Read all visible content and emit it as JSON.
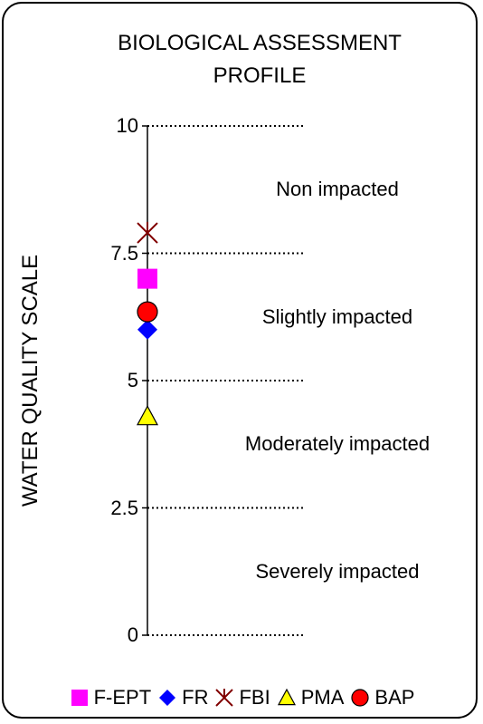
{
  "chart_data": {
    "type": "scatter",
    "title_lines": [
      "BIOLOGICAL ASSESSMENT",
      "PROFILE"
    ],
    "ylabel": "WATER QUALITY SCALE",
    "ylim": [
      0,
      10
    ],
    "yticks": [
      {
        "value": 0,
        "label": "0"
      },
      {
        "value": 2.5,
        "label": "2.5"
      },
      {
        "value": 5,
        "label": "5"
      },
      {
        "value": 7.5,
        "label": "7.5"
      },
      {
        "value": 10,
        "label": "10"
      }
    ],
    "zones": [
      {
        "label": "Non impacted",
        "from": 7.5,
        "to": 10
      },
      {
        "label": "Slightly impacted",
        "from": 5,
        "to": 7.5
      },
      {
        "label": "Moderately impacted",
        "from": 2.5,
        "to": 5
      },
      {
        "label": "Severely impacted",
        "from": 0,
        "to": 2.5
      }
    ],
    "series": [
      {
        "name": "F-EPT",
        "value": 7.0,
        "marker": "square",
        "color": "#ff00ff"
      },
      {
        "name": "FR",
        "value": 6.0,
        "marker": "diamond",
        "color": "#0000ff"
      },
      {
        "name": "FBI",
        "value": 7.9,
        "marker": "x-star",
        "color": "#800000"
      },
      {
        "name": "PMA",
        "value": 4.3,
        "marker": "triangle",
        "color": "#ffff00"
      },
      {
        "name": "BAP",
        "value": 6.35,
        "marker": "circle",
        "color": "#ff0000"
      }
    ],
    "grid": "dotted-horizontal-at-ticks",
    "legend_position": "bottom"
  }
}
